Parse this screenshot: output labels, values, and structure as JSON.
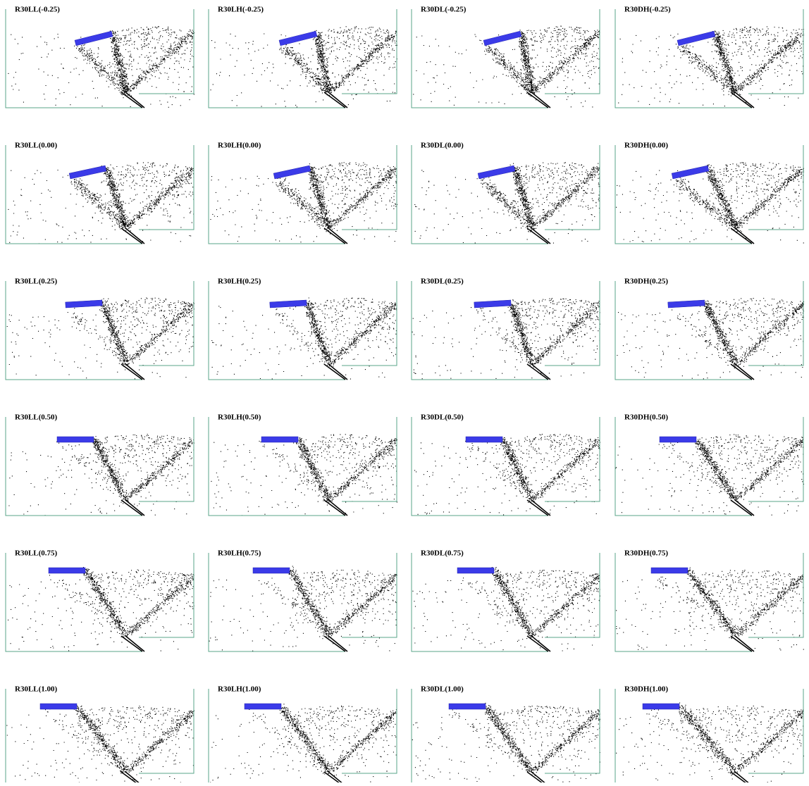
{
  "rows": [
    [
      "R30LL(-0.25)",
      "R30LH(-0.25)",
      "R30DL(-0.25)",
      "R30DH(-0.25)"
    ],
    [
      "R30LL(0.00)",
      "R30LH(0.00)",
      "R30DL(0.00)",
      "R30DH(0.00)"
    ],
    [
      "R30LL(0.25)",
      "R30LH(0.25)",
      "R30DL(0.25)",
      "R30DH(0.25)"
    ],
    [
      "R30LL(0.50)",
      "R30LH(0.50)",
      "R30DL(0.50)",
      "R30DH(0.50)"
    ],
    [
      "R30LL(0.75)",
      "R30LH(0.75)",
      "R30DL(0.75)",
      "R30DH(0.75)"
    ],
    [
      "R30LL(1.00)",
      "R30LH(1.00)",
      "R30DL(1.00)",
      "R30DH(1.00)"
    ]
  ]
}
